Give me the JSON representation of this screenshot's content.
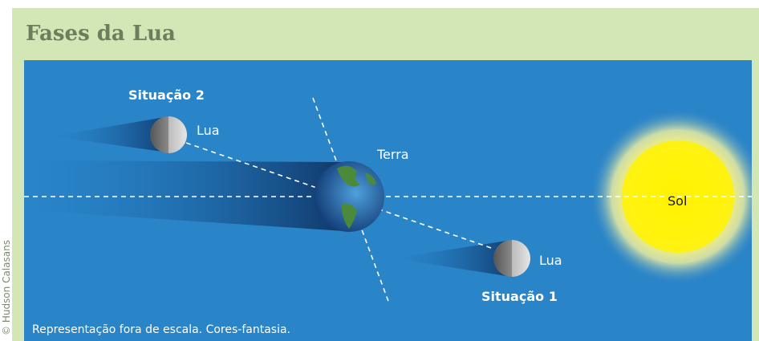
{
  "header": {
    "title": "Fases da Lua"
  },
  "labels": {
    "situation2": "Situação 2",
    "moon2": "Lua",
    "earth": "Terra",
    "sun": "Sol",
    "moon1": "Lua",
    "situation1": "Situação 1"
  },
  "credit": "© Hudson Calasans",
  "caption": "Representação fora de escala. Cores-fantasia."
}
